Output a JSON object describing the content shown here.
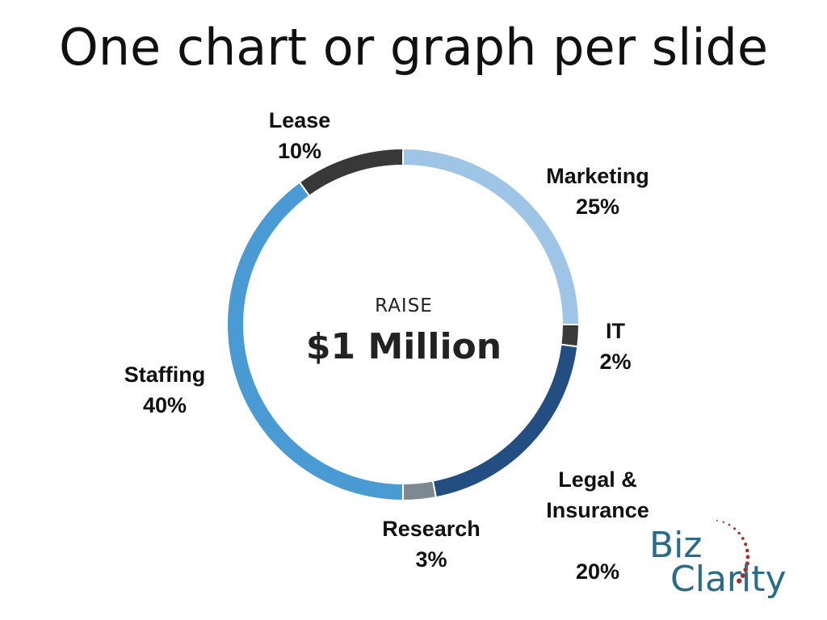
{
  "slide": {
    "title": "One chart or graph per slide"
  },
  "chart_data": {
    "type": "pie",
    "donut": true,
    "center_subtitle": "RAISE",
    "center_title": "$1 Million",
    "slices": [
      {
        "label": "Marketing",
        "value": 25,
        "value_label": "25%",
        "color": "#9fc5e6"
      },
      {
        "label": "IT",
        "value": 2,
        "value_label": "2%",
        "color": "#3a3a3a"
      },
      {
        "label": "Legal &\nInsurance",
        "value": 20,
        "value_label": "20%",
        "color": "#224e82"
      },
      {
        "label": "Research",
        "value": 3,
        "value_label": "3%",
        "color": "#7d8893"
      },
      {
        "label": "Staffing",
        "value": 40,
        "value_label": "40%",
        "color": "#4a9ad3"
      },
      {
        "label": "Lease",
        "value": 10,
        "value_label": "10%",
        "color": "#383838"
      }
    ]
  },
  "logo": {
    "line1": "Biz",
    "line2": "Clarity",
    "color": "#2a6b86",
    "dots_color": "#a0342a"
  }
}
